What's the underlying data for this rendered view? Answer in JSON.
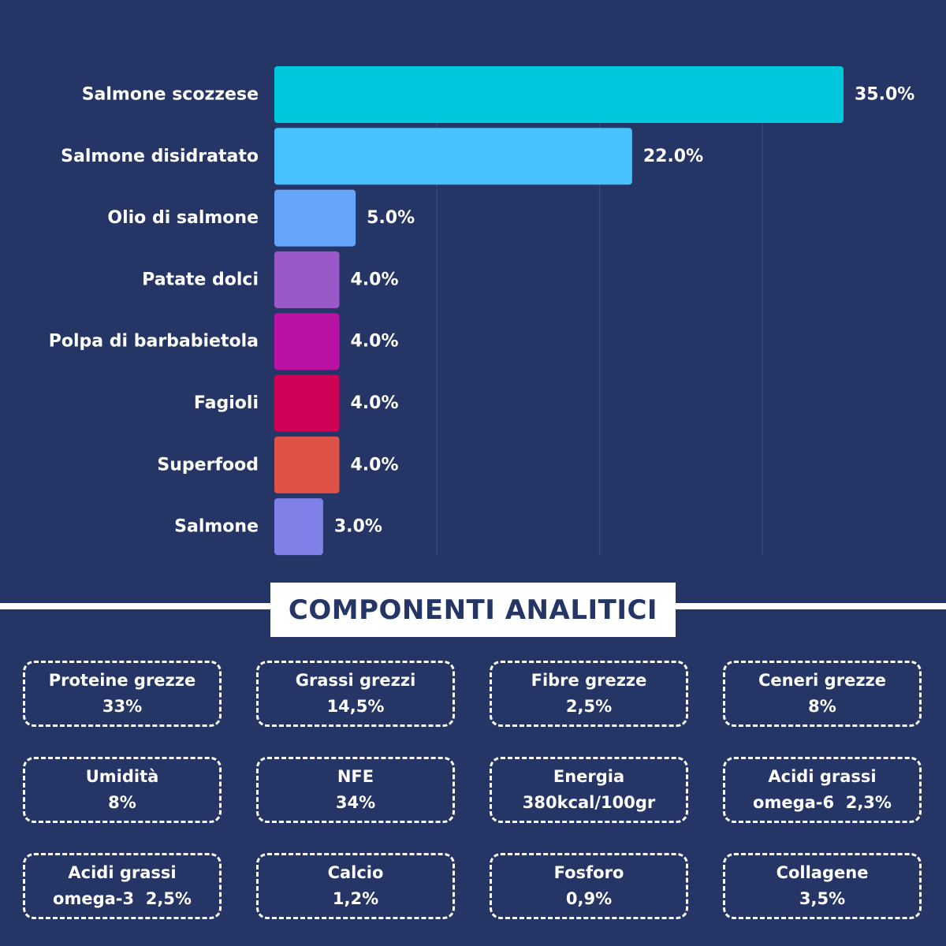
{
  "chart_data": {
    "type": "bar",
    "orientation": "horizontal",
    "categories": [
      "Salmone scozzese",
      "Salmone disidratato",
      "Olio di salmone",
      "Patate dolci",
      "Polpa di barbabietola",
      "Fagioli",
      "Superfood",
      "Salmone"
    ],
    "values": [
      35.0,
      22.0,
      5.0,
      4.0,
      4.0,
      4.0,
      4.0,
      3.0
    ],
    "value_labels": [
      "35.0%",
      "22.0%",
      "5.0%",
      "4.0%",
      "4.0%",
      "4.0%",
      "4.0%",
      "3.0%"
    ],
    "colors": [
      "#00C8DC",
      "#48C2FE",
      "#64A4FB",
      "#9A58C9",
      "#BB11A4",
      "#CE0157",
      "#E05246",
      "#7F80E8"
    ],
    "xlim": [
      0,
      35
    ],
    "gridlines": [
      10,
      20,
      30
    ],
    "grid": true,
    "title": "",
    "xlabel": "",
    "ylabel": ""
  },
  "components": {
    "title": "COMPONENTI ANALITICI",
    "items": [
      {
        "label": "Proteine grezze",
        "value": "33%"
      },
      {
        "label": "Grassi grezzi",
        "value": "14,5%"
      },
      {
        "label": "Fibre grezze",
        "value": "2,5%"
      },
      {
        "label": "Ceneri grezze",
        "value": "8%"
      },
      {
        "label": "Umidità",
        "value": "8%"
      },
      {
        "label": "NFE",
        "value": "34%"
      },
      {
        "label": "Energia",
        "value": "380kcal/100gr"
      },
      {
        "label": "Acidi grassi",
        "value": "omega-6  2,3%"
      },
      {
        "label": "Acidi grassi",
        "value": "omega-3  2,5%"
      },
      {
        "label": "Calcio",
        "value": "1,2%"
      },
      {
        "label": "Fosforo",
        "value": "0,9%"
      },
      {
        "label": "Collagene",
        "value": "3,5%"
      }
    ]
  },
  "colors": {
    "background": "#253565",
    "gridline": "#35467A",
    "text": "#FFFFFF",
    "title_text": "#253565"
  }
}
